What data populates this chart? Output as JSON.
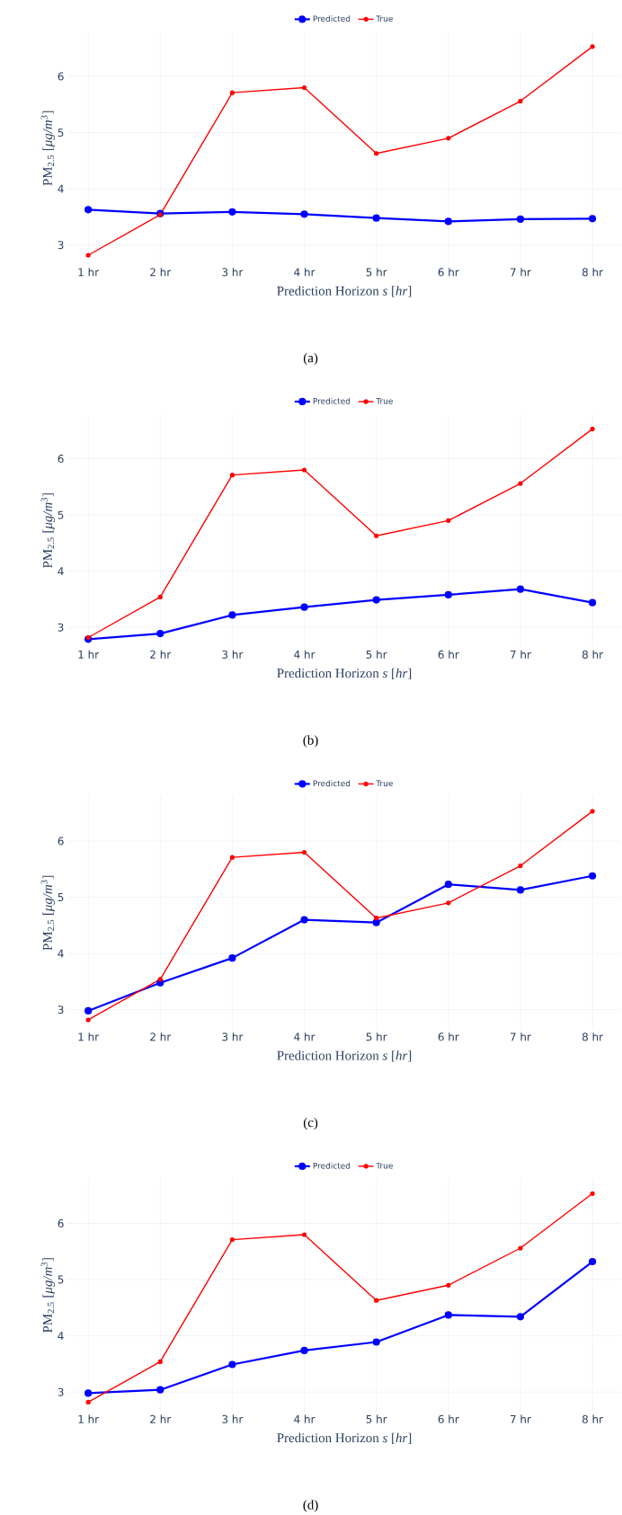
{
  "chart_data": [
    {
      "type": "line",
      "categories": [
        "1 hr",
        "2 hr",
        "3 hr",
        "4 hr",
        "5 hr",
        "6 hr",
        "7 hr",
        "8 hr"
      ],
      "xlabel": "Prediction Horizon *s* [*hr*]",
      "ylabel": "PM$_{2.5}$ [*μg/m*$^{3}$]",
      "ylim": [
        2.65,
        6.8
      ],
      "yticks": [
        3,
        4,
        5,
        6
      ],
      "grid": true,
      "legend": "top",
      "marker": "circle",
      "annotations": [
        "(a)"
      ],
      "series": [
        {
          "name": "Predicted",
          "color": "#0000ff",
          "values": [
            3.63,
            3.56,
            3.59,
            3.55,
            3.48,
            3.42,
            3.46,
            3.47
          ]
        },
        {
          "name": "True",
          "color": "#ff0000",
          "values": [
            2.82,
            3.54,
            5.71,
            5.8,
            4.63,
            4.9,
            5.56,
            6.53
          ]
        }
      ]
    },
    {
      "type": "line",
      "categories": [
        "1 hr",
        "2 hr",
        "3 hr",
        "4 hr",
        "5 hr",
        "6 hr",
        "7 hr",
        "8 hr"
      ],
      "xlabel": "Prediction Horizon *s* [*hr*]",
      "ylabel": "PM$_{2.5}$ [*μg/m*$^{3}$]",
      "ylim": [
        2.65,
        6.8
      ],
      "yticks": [
        3,
        4,
        5,
        6
      ],
      "grid": true,
      "legend": "top",
      "marker": "circle",
      "annotations": [
        "(b)"
      ],
      "series": [
        {
          "name": "Predicted",
          "color": "#0000ff",
          "values": [
            2.79,
            2.89,
            3.22,
            3.36,
            3.49,
            3.58,
            3.68,
            3.44
          ]
        },
        {
          "name": "True",
          "color": "#ff0000",
          "values": [
            2.82,
            3.54,
            5.71,
            5.8,
            4.63,
            4.9,
            5.56,
            6.53
          ]
        }
      ]
    },
    {
      "type": "line",
      "categories": [
        "1 hr",
        "2 hr",
        "3 hr",
        "4 hr",
        "5 hr",
        "6 hr",
        "7 hr",
        "8 hr"
      ],
      "xlabel": "Prediction Horizon *s* [*hr*]",
      "ylabel": "PM$_{2.5}$ [*μg/m*$^{3}$]",
      "ylim": [
        2.65,
        6.8
      ],
      "yticks": [
        3,
        4,
        5,
        6
      ],
      "grid": true,
      "legend": "top",
      "marker": "circle",
      "annotations": [
        "(c)"
      ],
      "series": [
        {
          "name": "Predicted",
          "color": "#0000ff",
          "values": [
            2.98,
            3.48,
            3.92,
            4.6,
            4.55,
            5.23,
            5.13,
            5.38
          ]
        },
        {
          "name": "True",
          "color": "#ff0000",
          "values": [
            2.82,
            3.54,
            5.71,
            5.8,
            4.63,
            4.9,
            5.56,
            6.53
          ]
        }
      ]
    },
    {
      "type": "line",
      "categories": [
        "1 hr",
        "2 hr",
        "3 hr",
        "4 hr",
        "5 hr",
        "6 hr",
        "7 hr",
        "8 hr"
      ],
      "xlabel": "Prediction Horizon *s* [*hr*]",
      "ylabel": "PM$_{2.5}$ [*μg/m*$^{3}$]",
      "ylim": [
        2.65,
        6.8
      ],
      "yticks": [
        3,
        4,
        5,
        6
      ],
      "grid": true,
      "legend": "top",
      "marker": "circle",
      "annotations": [
        "(d)"
      ],
      "series": [
        {
          "name": "Predicted",
          "color": "#0000ff",
          "values": [
            2.98,
            3.04,
            3.49,
            3.74,
            3.89,
            4.37,
            4.34,
            5.32
          ]
        },
        {
          "name": "True",
          "color": "#ff0000",
          "values": [
            2.82,
            3.54,
            5.71,
            5.8,
            4.63,
            4.9,
            5.56,
            6.53
          ]
        }
      ]
    }
  ]
}
